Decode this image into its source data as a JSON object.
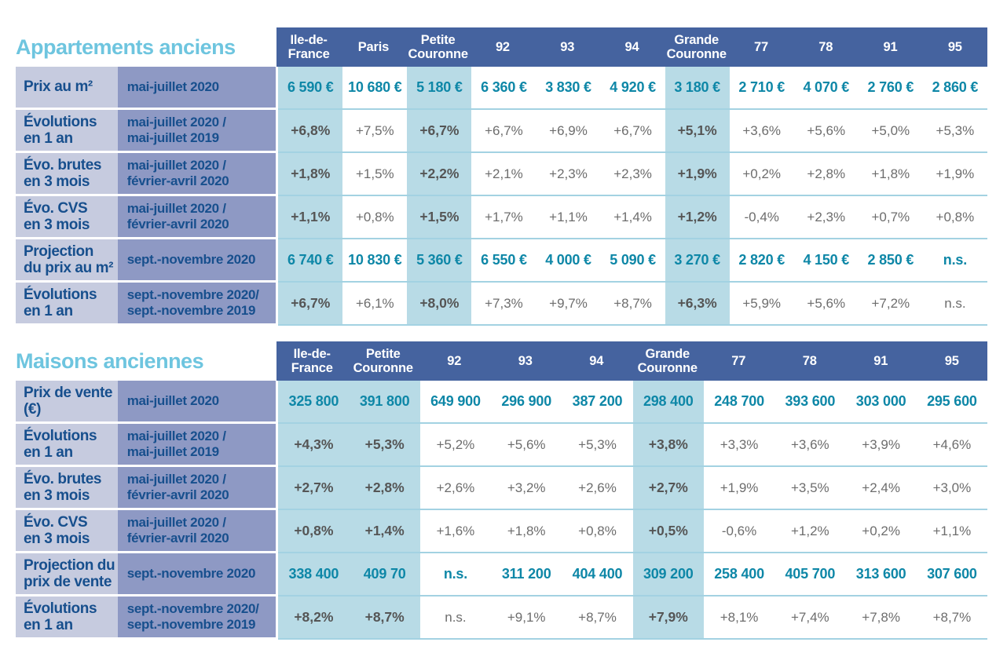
{
  "colors": {
    "header_bg": "#45639f",
    "label_col1_bg": "#c6cbdf",
    "label_col2_bg": "#8e99c4",
    "highlight_bg": "#b8dbe6",
    "navy_text": "#174f8d",
    "teal_value": "#0e87a7",
    "gray_value": "#6d6d6d",
    "dark_gray_value": "#555555",
    "row_separator": "#a3d2e2",
    "title_text": "#6ec5df"
  },
  "tables": [
    {
      "title": "Appartements anciens",
      "columns": [
        {
          "label": "Ile-de-\nFrance",
          "highlight": true
        },
        {
          "label": "Paris",
          "highlight": false
        },
        {
          "label": "Petite\nCouronne",
          "highlight": true
        },
        {
          "label": "92",
          "highlight": false
        },
        {
          "label": "93",
          "highlight": false
        },
        {
          "label": "94",
          "highlight": false
        },
        {
          "label": "Grande\nCouronne",
          "highlight": true
        },
        {
          "label": "77",
          "highlight": false
        },
        {
          "label": "78",
          "highlight": false
        },
        {
          "label": "91",
          "highlight": false
        },
        {
          "label": "95",
          "highlight": false
        }
      ],
      "rows": [
        {
          "label": "Prix au m²",
          "period": "mai-juillet 2020",
          "type": "price",
          "values": [
            "6 590 €",
            "10 680 €",
            "5 180 €",
            "6 360 €",
            "3 830 €",
            "4 920 €",
            "3 180 €",
            "2 710 €",
            "4 070 €",
            "2 760 €",
            "2 860 €"
          ]
        },
        {
          "label": "Évolutions\nen 1 an",
          "period": "mai-juillet 2020 /\nmai-juillet 2019",
          "type": "pct",
          "values": [
            "+6,8%",
            "+7,5%",
            "+6,7%",
            "+6,7%",
            "+6,9%",
            "+6,7%",
            "+5,1%",
            "+3,6%",
            "+5,6%",
            "+5,0%",
            "+5,3%"
          ]
        },
        {
          "label": "Évo. brutes\nen 3 mois",
          "period": "mai-juillet 2020 /\nfévrier-avril 2020",
          "type": "pct",
          "values": [
            "+1,8%",
            "+1,5%",
            "+2,2%",
            "+2,1%",
            "+2,3%",
            "+2,3%",
            "+1,9%",
            "+0,2%",
            "+2,8%",
            "+1,8%",
            "+1,9%"
          ]
        },
        {
          "label": "Évo. CVS\nen 3 mois",
          "period": "mai-juillet 2020 /\nfévrier-avril 2020",
          "type": "pct",
          "values": [
            "+1,1%",
            "+0,8%",
            "+1,5%",
            "+1,7%",
            "+1,1%",
            "+1,4%",
            "+1,2%",
            "-0,4%",
            "+2,3%",
            "+0,7%",
            "+0,8%"
          ]
        },
        {
          "label": "Projection\ndu prix au m²",
          "period": "sept.-novembre 2020",
          "type": "price",
          "values": [
            "6 740 €",
            "10 830 €",
            "5 360 €",
            "6 550 €",
            "4 000 €",
            "5 090 €",
            "3 270 €",
            "2 820 €",
            "4 150 €",
            "2 850 €",
            "n.s."
          ]
        },
        {
          "label": "Évolutions\nen 1 an",
          "period": "sept.-novembre 2020/\nsept.-novembre 2019",
          "type": "pct",
          "values": [
            "+6,7%",
            "+6,1%",
            "+8,0%",
            "+7,3%",
            "+9,7%",
            "+8,7%",
            "+6,3%",
            "+5,9%",
            "+5,6%",
            "+7,2%",
            "n.s."
          ]
        }
      ]
    },
    {
      "title": "Maisons anciennes",
      "columns": [
        {
          "label": "Ile-de-\nFrance",
          "highlight": true
        },
        {
          "label": "Petite\nCouronne",
          "highlight": true
        },
        {
          "label": "92",
          "highlight": false
        },
        {
          "label": "93",
          "highlight": false
        },
        {
          "label": "94",
          "highlight": false
        },
        {
          "label": "Grande\nCouronne",
          "highlight": true
        },
        {
          "label": "77",
          "highlight": false
        },
        {
          "label": "78",
          "highlight": false
        },
        {
          "label": "91",
          "highlight": false
        },
        {
          "label": "95",
          "highlight": false
        }
      ],
      "rows": [
        {
          "label": "Prix de vente\n(€)",
          "period": "mai-juillet 2020",
          "type": "price",
          "values": [
            "325 800",
            "391 800",
            "649 900",
            "296 900",
            "387 200",
            "298 400",
            "248 700",
            "393 600",
            "303 000",
            "295 600"
          ]
        },
        {
          "label": "Évolutions\nen 1 an",
          "period": "mai-juillet 2020 /\nmai-juillet 2019",
          "type": "pct",
          "values": [
            "+4,3%",
            "+5,3%",
            "+5,2%",
            "+5,6%",
            "+5,3%",
            "+3,8%",
            "+3,3%",
            "+3,6%",
            "+3,9%",
            "+4,6%"
          ]
        },
        {
          "label": "Évo. brutes\nen 3 mois",
          "period": "mai-juillet 2020 /\nfévrier-avril 2020",
          "type": "pct",
          "values": [
            "+2,7%",
            "+2,8%",
            "+2,6%",
            "+3,2%",
            "+2,6%",
            "+2,7%",
            "+1,9%",
            "+3,5%",
            "+2,4%",
            "+3,0%"
          ]
        },
        {
          "label": "Évo. CVS\nen 3 mois",
          "period": "mai-juillet 2020 /\nfévrier-avril 2020",
          "type": "pct",
          "values": [
            "+0,8%",
            "+1,4%",
            "+1,6%",
            "+1,8%",
            "+0,8%",
            "+0,5%",
            "-0,6%",
            "+1,2%",
            "+0,2%",
            "+1,1%"
          ]
        },
        {
          "label": "Projection du\nprix de vente",
          "period": "sept.-novembre 2020",
          "type": "price",
          "values": [
            "338 400",
            "409 70",
            "n.s.",
            "311 200",
            "404 400",
            "309 200",
            "258 400",
            "405 700",
            "313 600",
            "307 600"
          ]
        },
        {
          "label": "Évolutions\nen 1 an",
          "period": "sept.-novembre 2020/\nsept.-novembre 2019",
          "type": "pct",
          "values": [
            "+8,2%",
            "+8,7%",
            "n.s.",
            "+9,1%",
            "+8,7%",
            "+7,9%",
            "+8,1%",
            "+7,4%",
            "+7,8%",
            "+8,7%"
          ]
        }
      ]
    }
  ]
}
